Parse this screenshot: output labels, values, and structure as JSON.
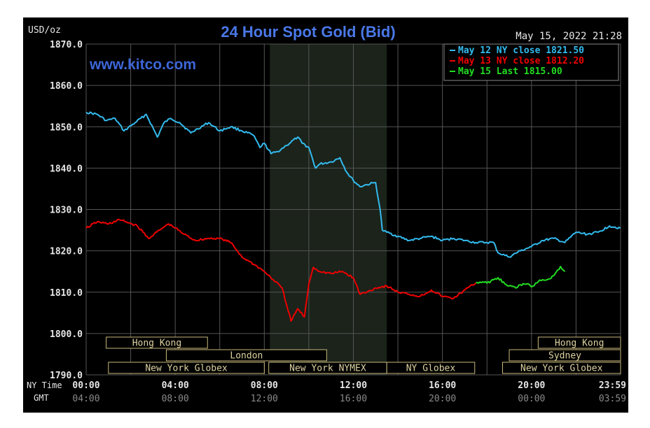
{
  "chart_data": {
    "type": "line",
    "title": "24 Hour Spot Gold (Bid)",
    "source": "www.kitco.com",
    "timestamp": "May 15, 2022 21:28",
    "ylabel": "USD/oz",
    "ylim": [
      1790,
      1870
    ],
    "y_ticks": [
      "1870.0",
      "1860.0",
      "1850.0",
      "1840.0",
      "1830.0",
      "1820.0",
      "1810.0",
      "1800.0",
      "1790.0"
    ],
    "x_row_labels": {
      "ny": "NY Time",
      "gmt": "GMT"
    },
    "x_ticks_ny": [
      "00:00",
      "04:00",
      "08:00",
      "12:00",
      "16:00",
      "20:00",
      "23:59"
    ],
    "x_ticks_gmt": [
      "04:00",
      "08:00",
      "12:00",
      "16:00",
      "20:00",
      "00:00",
      "03:59"
    ],
    "x_tick_hours": [
      0,
      4,
      8,
      12,
      16,
      20,
      24
    ],
    "grid": true,
    "legend_position": "top-right",
    "highlight_hours": [
      8.25,
      13.5
    ],
    "sessions": [
      {
        "label": "Hong Kong",
        "start": 0.9,
        "end": 5.45,
        "row": 0
      },
      {
        "label": "London",
        "start": 3.6,
        "end": 10.8,
        "row": 1
      },
      {
        "label": "New York Globex",
        "start": 1.0,
        "end": 8.0,
        "row": 2
      },
      {
        "label": "New York NYMEX",
        "start": 8.2,
        "end": 13.5,
        "row": 2
      },
      {
        "label": "NY Globex",
        "start": 13.5,
        "end": 17.45,
        "row": 2
      },
      {
        "label": "Hong Kong",
        "start": 20.3,
        "end": 24,
        "row": 0
      },
      {
        "label": "Sydney",
        "start": 19.0,
        "end": 24,
        "row": 1
      },
      {
        "label": "New York Globex",
        "start": 18.7,
        "end": 24,
        "row": 2
      }
    ],
    "series": [
      {
        "name": "May 12 NY close 1821.50",
        "color": "#33bbee",
        "x": [
          0,
          0.5,
          0.9,
          1.3,
          1.7,
          2.2,
          2.7,
          3.2,
          3.5,
          3.8,
          4.2,
          4.7,
          5.0,
          5.5,
          6.0,
          6.5,
          7.0,
          7.5,
          7.8,
          8.0,
          8.3,
          8.6,
          9.0,
          9.5,
          9.7,
          10.0,
          10.3,
          10.5,
          11.0,
          11.4,
          11.7,
          12.0,
          12.3,
          12.6,
          13.0,
          13.2,
          13.3,
          13.5,
          14.0,
          14.5,
          15.0,
          15.5,
          16.0,
          16.5,
          17.0,
          17.5,
          18.0,
          18.3,
          18.5,
          19.0,
          19.5,
          20.0,
          20.5,
          21.0,
          21.5,
          22.0,
          22.5,
          23.0,
          23.5,
          23.99
        ],
        "values": [
          1853.5,
          1853,
          1851.5,
          1852,
          1849,
          1851,
          1853,
          1847.5,
          1851,
          1852,
          1851,
          1848.5,
          1849.5,
          1851,
          1849,
          1850,
          1849,
          1848,
          1845,
          1846,
          1843.5,
          1844,
          1845.5,
          1847.5,
          1846,
          1845,
          1840,
          1841,
          1841.5,
          1842.5,
          1839,
          1837,
          1835.5,
          1836,
          1836.5,
          1830,
          1825,
          1824.5,
          1823.5,
          1822.5,
          1823,
          1823.5,
          1822.5,
          1823,
          1822.5,
          1822,
          1822,
          1822,
          1819.5,
          1818.5,
          1820,
          1821,
          1822.5,
          1823,
          1822,
          1824.5,
          1824,
          1824.5,
          1826,
          1825.5
        ]
      },
      {
        "name": "May 13 NY close 1812.20",
        "color": "#ee0000",
        "x": [
          0,
          0.5,
          1.0,
          1.5,
          1.8,
          2.3,
          2.8,
          3.3,
          3.7,
          4.0,
          4.4,
          4.9,
          5.5,
          6.0,
          6.5,
          7.0,
          7.3,
          7.6,
          8.0,
          8.4,
          8.8,
          9.0,
          9.2,
          9.5,
          9.8,
          10.0,
          10.2,
          10.5,
          11.0,
          11.5,
          12.0,
          12.3,
          12.6,
          13.0,
          13.5,
          14.0,
          14.5,
          15.0,
          15.5,
          16.0,
          16.5,
          17.0,
          17.5
        ],
        "values": [
          1825.5,
          1827,
          1826.5,
          1827.5,
          1827,
          1826,
          1823,
          1825,
          1826.5,
          1825.5,
          1824,
          1822.5,
          1823,
          1823,
          1822,
          1818.5,
          1817.5,
          1816.5,
          1815,
          1813,
          1811,
          1807,
          1803,
          1806,
          1804,
          1812,
          1816,
          1815,
          1814.5,
          1815,
          1813.5,
          1809.5,
          1810,
          1811,
          1811.5,
          1810,
          1809.5,
          1809,
          1810.5,
          1809,
          1808.5,
          1810.5,
          1812.2
        ]
      },
      {
        "name": "May 15 Last 1815.00",
        "color": "#22dd22",
        "x": [
          17.5,
          17.8,
          18.0,
          18.3,
          18.5,
          18.8,
          19.0,
          19.3,
          19.5,
          19.8,
          20.0,
          20.3,
          20.5,
          20.8,
          21.0,
          21.3,
          21.5
        ],
        "values": [
          1812.2,
          1812.5,
          1812.2,
          1813,
          1813.5,
          1812,
          1811.5,
          1811,
          1811.8,
          1812,
          1811.3,
          1812.5,
          1813,
          1813.2,
          1814,
          1816.2,
          1815
        ]
      }
    ]
  }
}
